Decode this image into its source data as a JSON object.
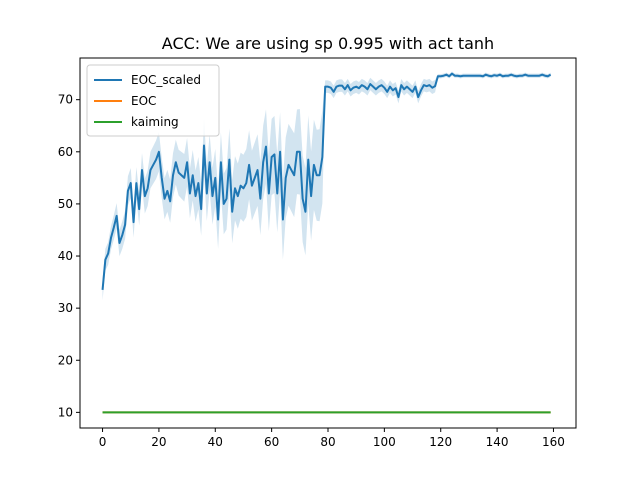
{
  "chart_data": {
    "type": "line",
    "title": "ACC: We are using sp 0.995 with act tanh",
    "xlabel": "",
    "ylabel": "",
    "xlim": [
      -8,
      168
    ],
    "ylim": [
      7,
      78
    ],
    "xticks": [
      0,
      20,
      40,
      60,
      80,
      100,
      120,
      140,
      160
    ],
    "yticks": [
      10,
      20,
      30,
      40,
      50,
      60,
      70
    ],
    "grid": false,
    "legend_position": "upper left",
    "series": [
      {
        "name": "EOC_scaled",
        "color": "#1f77b4",
        "band_color": "#1f77b4",
        "band_opacity": 0.2,
        "x": [
          0,
          1,
          2,
          3,
          4,
          5,
          6,
          7,
          8,
          9,
          10,
          11,
          12,
          13,
          14,
          15,
          16,
          17,
          18,
          19,
          20,
          21,
          22,
          23,
          24,
          25,
          26,
          27,
          28,
          29,
          30,
          31,
          32,
          33,
          34,
          35,
          36,
          37,
          38,
          39,
          40,
          41,
          42,
          43,
          44,
          45,
          46,
          47,
          48,
          49,
          50,
          51,
          52,
          53,
          54,
          55,
          56,
          57,
          58,
          59,
          60,
          61,
          62,
          63,
          64,
          65,
          66,
          67,
          68,
          69,
          70,
          71,
          72,
          73,
          74,
          75,
          76,
          77,
          78,
          79,
          80,
          81,
          82,
          83,
          84,
          85,
          86,
          87,
          88,
          89,
          90,
          91,
          92,
          93,
          94,
          95,
          96,
          97,
          98,
          99,
          100,
          101,
          102,
          103,
          104,
          105,
          106,
          107,
          108,
          109,
          110,
          111,
          112,
          113,
          114,
          115,
          116,
          117,
          118,
          119,
          120,
          121,
          122,
          123,
          124,
          125,
          126,
          127,
          128,
          129,
          130,
          131,
          132,
          133,
          134,
          135,
          136,
          137,
          138,
          139,
          140,
          141,
          142,
          143,
          144,
          145,
          146,
          147,
          148,
          149,
          150,
          151,
          152,
          153,
          154,
          155,
          156,
          157,
          158,
          159
        ],
        "values": [
          33.5,
          39.3,
          40.5,
          43.5,
          45.5,
          47.7,
          42.5,
          44.0,
          46.0,
          52.5,
          54.0,
          46.5,
          54.0,
          49.0,
          56.5,
          51.5,
          53.0,
          56.5,
          57.5,
          58.5,
          60.0,
          55.0,
          51.0,
          52.5,
          50.5,
          55.5,
          58.0,
          56.0,
          55.5,
          55.0,
          58.0,
          52.0,
          55.5,
          51.5,
          54.0,
          49.0,
          61.2,
          52.0,
          58.0,
          51.5,
          55.0,
          47.0,
          58.0,
          50.0,
          51.0,
          58.5,
          48.5,
          53.0,
          51.5,
          53.5,
          53.0,
          54.0,
          57.5,
          53.5,
          55.0,
          56.5,
          51.0,
          58.0,
          61.0,
          52.0,
          59.0,
          59.5,
          52.0,
          60.0,
          47.0,
          55.0,
          57.5,
          56.5,
          55.5,
          60.0,
          60.0,
          51.0,
          48.5,
          58.5,
          51.5,
          57.5,
          55.5,
          55.5,
          59.0,
          72.5,
          72.5,
          72.3,
          71.5,
          72.5,
          72.7,
          72.7,
          72.0,
          72.8,
          71.8,
          72.3,
          72.5,
          72.2,
          72.8,
          72.5,
          72.0,
          73.0,
          72.5,
          72.0,
          72.5,
          72.8,
          72.3,
          71.5,
          72.5,
          71.8,
          72.2,
          70.5,
          72.8,
          72.0,
          72.5,
          72.0,
          71.5,
          72.5,
          70.5,
          71.8,
          72.8,
          72.6,
          72.8,
          72.3,
          72.6,
          74.5,
          74.5,
          74.6,
          74.8,
          74.5,
          75.0,
          74.6,
          74.6,
          74.5,
          74.6,
          74.6,
          74.6,
          74.6,
          74.6,
          74.6,
          74.6,
          74.5,
          74.8,
          74.6,
          74.5,
          74.7,
          74.6,
          74.8,
          74.5,
          74.6,
          74.6,
          74.8,
          74.6,
          74.5,
          74.6,
          74.6,
          74.8,
          74.6,
          74.6,
          74.6,
          74.6,
          74.6,
          74.8,
          74.6,
          74.5,
          74.8
        ]
      },
      {
        "name": "EOC",
        "color": "#ff7f0e",
        "x": [
          0,
          159
        ],
        "values": [
          10.0,
          10.0
        ]
      },
      {
        "name": "kaiming",
        "color": "#2ca02c",
        "x": [
          0,
          159
        ],
        "values": [
          10.0,
          10.0
        ]
      }
    ]
  }
}
